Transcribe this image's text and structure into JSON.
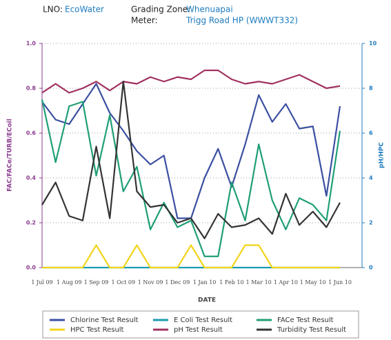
{
  "chart_data": {
    "type": "line",
    "info": [
      {
        "label": "LNO:",
        "value": "EcoWater"
      },
      {
        "label": "Grading Zone:",
        "value": "Whenuapai"
      },
      {
        "label": "Meter:",
        "value": "Trigg Road HP (WWWT332)"
      }
    ],
    "xlabel": "DATE",
    "ylabel": "FAC/FACe/TURB/ECoil",
    "y2label": "pH/HPC",
    "categories": [
      "1 Jul 09",
      null,
      "1 Aug 09",
      null,
      "1 Sep 09",
      null,
      "1 Oct 09",
      null,
      "1 Nov 09",
      null,
      "1 Dec 09",
      null,
      "1 Jan 10",
      null,
      "1 Feb 10",
      null,
      "1 Mar 10",
      null,
      "1 Apr 10",
      null,
      "1 May 10",
      null,
      "1 Jun 10"
    ],
    "ylim": [
      0,
      1
    ],
    "yticks": [
      {
        "value": 0,
        "label": "0.0"
      },
      {
        "value": 0.2,
        "label": "0.2"
      },
      {
        "value": 0.4,
        "label": "0.4"
      },
      {
        "value": 0.6,
        "label": "0.6"
      },
      {
        "value": 0.8,
        "label": "0.8"
      },
      {
        "value": 1,
        "label": "1.0"
      }
    ],
    "y2lim": [
      0,
      10
    ],
    "y2ticks": [
      0,
      2,
      4,
      6,
      8,
      10
    ],
    "grid": true,
    "series": [
      {
        "name": "Chlorine Test Result",
        "color": "#3a4fa0",
        "values": [
          0.74,
          0.66,
          0.64,
          0.73,
          0.82,
          0.69,
          0.61,
          0.52,
          0.46,
          0.5,
          0.22,
          0.22,
          0.4,
          0.53,
          0.36,
          0.55,
          0.77,
          0.65,
          0.73,
          0.62,
          0.63,
          0.32,
          0.72
        ]
      },
      {
        "name": "E Coli Test Result",
        "color": "#1a9bb0",
        "values": [
          0,
          0,
          0,
          0,
          0,
          0,
          0,
          0,
          0,
          0,
          0,
          0,
          0,
          0,
          0,
          0,
          0,
          0,
          0,
          0,
          0,
          0,
          0
        ]
      },
      {
        "name": "FACe Test Result",
        "color": "#1f9e77",
        "values": [
          0.75,
          0.47,
          0.72,
          0.74,
          0.41,
          0.68,
          0.34,
          0.45,
          0.17,
          0.29,
          0.18,
          0.21,
          0.05,
          0.05,
          0.38,
          0.21,
          0.55,
          0.3,
          0.17,
          0.31,
          0.28,
          0.21,
          0.61
        ]
      },
      {
        "name": "HPC Test Result",
        "color": "#f2d41a",
        "axis": "y2",
        "values": [
          0,
          0,
          0,
          0,
          1,
          0,
          0,
          1,
          0,
          0,
          0,
          1,
          0,
          0,
          0,
          1,
          1,
          0,
          0,
          0,
          0,
          0,
          0
        ]
      },
      {
        "name": "pH Test Result",
        "color": "#a0305f",
        "axis": "y2",
        "values": [
          7.8,
          8.2,
          7.8,
          8.0,
          8.3,
          7.9,
          8.3,
          8.2,
          8.5,
          8.3,
          8.5,
          8.4,
          8.8,
          8.8,
          8.4,
          8.2,
          8.3,
          8.2,
          8.4,
          8.6,
          8.3,
          8.0,
          8.1
        ]
      },
      {
        "name": "Turbidity Test Result",
        "color": "#333333",
        "values": [
          0.28,
          0.38,
          0.23,
          0.21,
          0.54,
          0.22,
          0.83,
          0.34,
          0.27,
          0.28,
          0.2,
          0.22,
          0.13,
          0.24,
          0.18,
          0.19,
          0.22,
          0.15,
          0.33,
          0.19,
          0.25,
          0.18,
          0.29
        ]
      }
    ]
  }
}
